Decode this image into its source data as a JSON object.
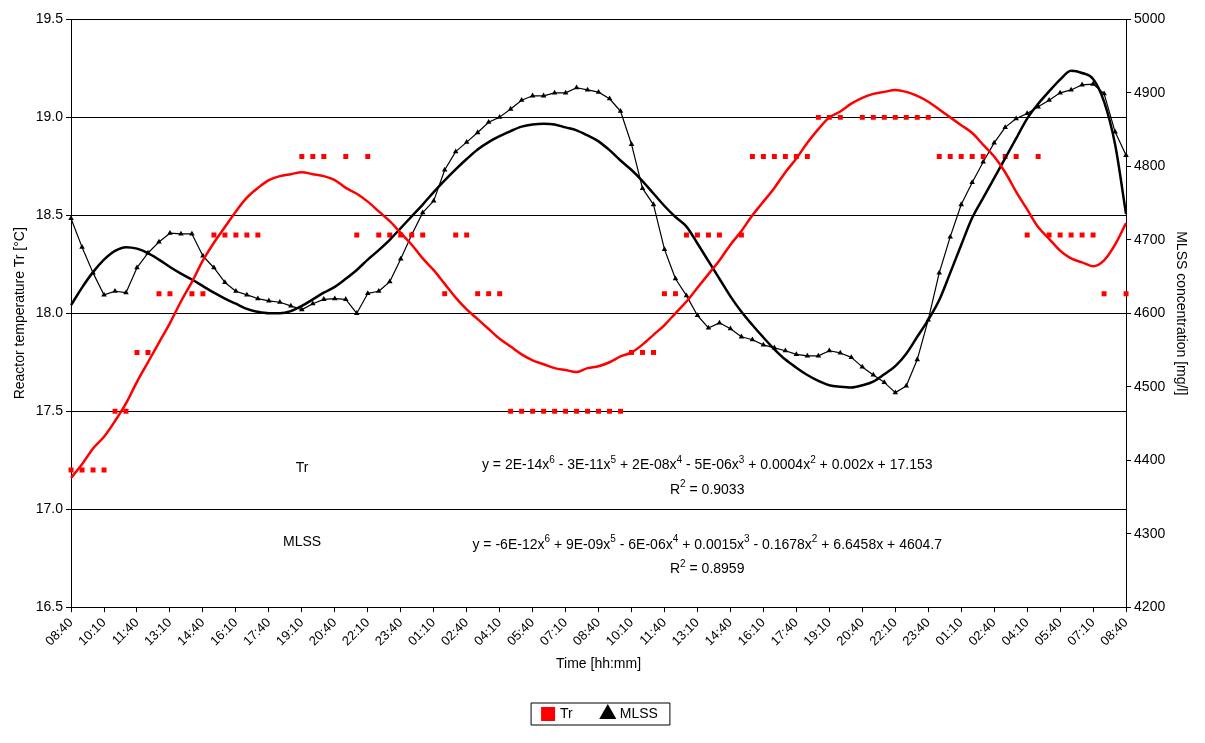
{
  "chart_data": {
    "type": "line",
    "xlabel": "Time [hh:mm]",
    "ylabel": "Reactor temperature Tr [°C]",
    "y2label": "MLSS concentration [mg/l]",
    "categories": [
      "08:40",
      null,
      null,
      "10:10",
      null,
      null,
      "11:40",
      null,
      null,
      "13:10",
      null,
      null,
      "14:40",
      null,
      null,
      "16:10",
      null,
      null,
      "17:40",
      null,
      null,
      "19:10",
      null,
      null,
      "20:40",
      null,
      null,
      "22:10",
      null,
      null,
      "23:40",
      null,
      null,
      "01:10",
      null,
      null,
      "02:40",
      null,
      null,
      "04:10",
      null,
      null,
      "05:40",
      null,
      null,
      "07:10",
      null,
      null,
      "08:40",
      null,
      null,
      "10:10",
      null,
      null,
      "11:40",
      null,
      null,
      "13:10",
      null,
      null,
      "14:40",
      null,
      null,
      "16:10",
      null,
      null,
      "17:40",
      null,
      null,
      "19:10",
      null,
      null,
      "20:40",
      null,
      null,
      "22:10",
      null,
      null,
      "23:40",
      null,
      null,
      "01:10",
      null,
      null,
      "02:40",
      null,
      null,
      "04:10",
      null,
      null,
      "05:40",
      null,
      null,
      "07:10",
      null,
      null,
      "08:40"
    ],
    "ylim": [
      16.5,
      19.5
    ],
    "yticks": [
      16.5,
      {
        "value": 17,
        "label": "17.0"
      },
      17.5,
      {
        "value": 18,
        "label": "18.0"
      },
      18.5,
      {
        "value": 19,
        "label": "19.0"
      },
      19.5
    ],
    "y2lim": [
      4200,
      5000
    ],
    "y2ticks": [
      4200,
      4300,
      4400,
      4500,
      4600,
      4700,
      4800,
      4900,
      5000
    ],
    "grid": "y",
    "legend": "bottom",
    "annotations": [
      "Tr",
      "y = 2E-14x$^{6}$ - 3E-11x$^{5}$ + 2E-08x$^{4}$ - 5E-06x$^{3}$ + 0.0004x$^{2}$ + 0.002x + 17.153",
      "R$^{2}$ = 0.9033",
      "MLSS",
      "y = -6E-12x$^{6}$ + 9E-09x$^{5}$ - 6E-06x$^{4}$ + 0.0015x$^{3}$ - 0.1678x$^{2}$ + 6.6458x + 4604.7",
      "R$^{2}$ = 0.8959"
    ],
    "series": [
      {
        "name": "Tr",
        "type": "scatter",
        "marker": "square",
        "color": "#ff0000",
        "values": [
          17.2,
          17.2,
          17.2,
          17.2,
          17.5,
          17.5,
          17.8,
          17.8,
          18.1,
          18.1,
          null,
          18.1,
          18.1,
          18.4,
          18.4,
          18.4,
          18.4,
          18.4,
          null,
          null,
          null,
          18.8,
          18.8,
          18.8,
          null,
          18.8,
          18.4,
          18.8,
          18.4,
          18.4,
          18.4,
          18.4,
          18.4,
          null,
          18.1,
          18.4,
          18.4,
          18.1,
          18.1,
          18.1,
          17.5,
          17.5,
          17.5,
          17.5,
          17.5,
          17.5,
          17.5,
          17.5,
          17.5,
          17.5,
          17.5,
          17.8,
          17.8,
          17.8,
          18.1,
          18.1,
          18.4,
          18.4,
          18.4,
          18.4,
          null,
          18.4,
          18.8,
          18.8,
          18.8,
          18.8,
          18.8,
          18.8,
          19.0,
          19.0,
          19.0,
          null,
          19.0,
          19.0,
          19.0,
          19.0,
          19.0,
          19.0,
          19.0,
          18.8,
          18.8,
          18.8,
          18.8,
          18.8,
          null,
          18.8,
          18.8,
          18.4,
          18.8,
          18.4,
          18.4,
          18.4,
          18.4,
          18.4,
          18.1,
          null,
          18.1
        ]
      },
      {
        "name": "MLSS",
        "marker": "triangle",
        "color": "#000000",
        "axis": "y2",
        "values": [
          4729,
          4690,
          4655,
          4625,
          4630,
          4628,
          4662,
          4682,
          4697,
          4709,
          4708,
          4708,
          4678,
          4662,
          4642,
          4630,
          4625,
          4620,
          4617,
          4615,
          4610,
          4605,
          4613,
          4619,
          4620,
          4619,
          4600,
          4627,
          4630,
          4643,
          4674,
          4707,
          4737,
          4753,
          4795,
          4820,
          4833,
          4846,
          4860,
          4867,
          4878,
          4890,
          4896,
          4896,
          4900,
          4900,
          4907,
          4904,
          4901,
          4892,
          4875,
          4830,
          4770,
          4748,
          4687,
          4647,
          4624,
          4597,
          4580,
          4587,
          4579,
          4568,
          4564,
          4557,
          4553,
          4549,
          4544,
          4542,
          4542,
          4549,
          4546,
          4540,
          4527,
          4516,
          4506,
          4492,
          4501,
          4537,
          4591,
          4655,
          4704,
          4748,
          4778,
          4806,
          4832,
          4853,
          4865,
          4872,
          4881,
          4890,
          4900,
          4904,
          4911,
          4912,
          4899,
          4847,
          4815
        ]
      },
      {
        "marker": "none",
        "color": "#ff0000",
        "values": [
          17.16,
          17.23,
          17.31,
          17.37,
          17.45,
          17.54,
          17.65,
          17.75,
          17.85,
          17.95,
          18.06,
          18.16,
          18.27,
          18.36,
          18.44,
          18.52,
          18.59,
          18.64,
          18.68,
          18.7,
          18.71,
          18.72,
          18.71,
          18.7,
          18.68,
          18.64,
          18.61,
          18.57,
          18.52,
          18.47,
          18.41,
          18.35,
          18.28,
          18.22,
          18.15,
          18.08,
          18.02,
          17.97,
          17.92,
          17.87,
          17.83,
          17.79,
          17.76,
          17.74,
          17.72,
          17.71,
          17.7,
          17.72,
          17.73,
          17.75,
          17.78,
          17.8,
          17.84,
          17.89,
          17.94,
          18.0,
          18.06,
          18.13,
          18.2,
          18.27,
          18.35,
          18.42,
          18.5,
          18.57,
          18.64,
          18.72,
          18.79,
          18.87,
          18.94,
          19.0,
          19.03,
          19.07,
          19.1,
          19.12,
          19.13,
          19.14,
          19.13,
          19.11,
          19.08,
          19.04,
          19.0,
          18.96,
          18.92,
          18.86,
          18.8,
          18.72,
          18.62,
          18.53,
          18.44,
          18.38,
          18.32,
          18.28,
          18.26,
          18.24,
          18.27,
          18.35,
          18.46
        ]
      },
      {
        "marker": "none",
        "color": "#000000",
        "axis": "y2",
        "values": [
          4611,
          4635,
          4656,
          4673,
          4685,
          4690,
          4688,
          4682,
          4673,
          4663,
          4654,
          4646,
          4637,
          4628,
          4620,
          4613,
          4606,
          4602,
          4600,
          4600,
          4603,
          4610,
          4619,
          4628,
          4636,
          4647,
          4659,
          4673,
          4686,
          4700,
          4716,
          4732,
          4748,
          4765,
          4781,
          4796,
          4810,
          4823,
          4833,
          4841,
          4848,
          4854,
          4857,
          4858,
          4857,
          4853,
          4849,
          4842,
          4834,
          4822,
          4808,
          4795,
          4780,
          4763,
          4746,
          4731,
          4718,
          4695,
          4671,
          4647,
          4623,
          4602,
          4584,
          4567,
          4551,
          4537,
          4526,
          4516,
          4508,
          4502,
          4500,
          4499,
          4502,
          4507,
          4517,
          4528,
          4545,
          4568,
          4591,
          4618,
          4655,
          4693,
          4730,
          4757,
          4784,
          4811,
          4838,
          4865,
          4885,
          4902,
          4918,
          4930,
          4927,
          4919,
          4888,
          4830,
          4735
        ]
      }
    ]
  }
}
